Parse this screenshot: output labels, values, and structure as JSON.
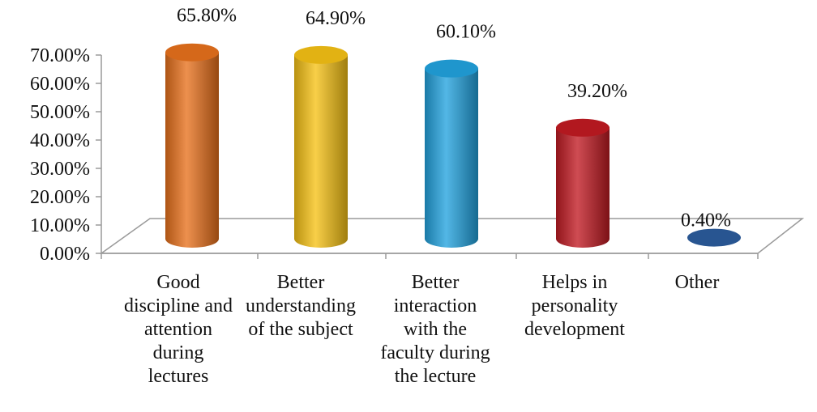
{
  "chart_data": {
    "type": "bar",
    "title": "",
    "xlabel": "",
    "ylabel": "",
    "ylim": [
      0,
      70
    ],
    "y_ticks": [
      "0.00%",
      "10.00%",
      "20.00%",
      "30.00%",
      "40.00%",
      "50.00%",
      "60.00%",
      "70.00%"
    ],
    "grid": false,
    "legend": "none",
    "style": "3d-cylinder",
    "categories": [
      "Good discipline and attention during lectures",
      "Better understanding of the subject",
      "Better interaction with the faculty during the lecture",
      "Helps in personality development",
      "Other"
    ],
    "category_label_lines": [
      [
        "Good",
        "discipline and",
        "attention",
        "during",
        "lectures"
      ],
      [
        "Better",
        "understanding",
        "of the subject"
      ],
      [
        "Better",
        "interaction",
        "with the",
        "faculty during",
        "the lecture"
      ],
      [
        "Helps in",
        "personality",
        "development"
      ],
      [
        "Other"
      ]
    ],
    "values": [
      65.8,
      64.9,
      60.1,
      39.2,
      0.4
    ],
    "value_labels": [
      "65.80%",
      "64.90%",
      "60.10%",
      "39.20%",
      "0.40%"
    ],
    "colors": [
      "#E8711C",
      "#F6C215",
      "#22A3DF",
      "#C11A22",
      "#2B5C9E"
    ]
  }
}
